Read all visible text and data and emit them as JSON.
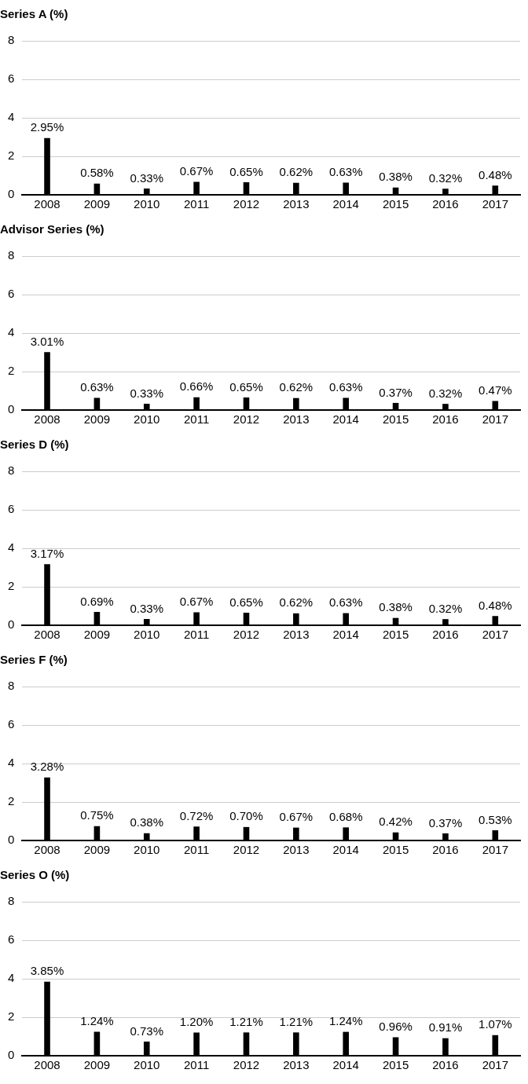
{
  "chart_data": [
    {
      "type": "bar",
      "title": "Series A (%)",
      "categories": [
        "2008",
        "2009",
        "2010",
        "2011",
        "2012",
        "2013",
        "2014",
        "2015",
        "2016",
        "2017"
      ],
      "values": [
        2.95,
        0.58,
        0.33,
        0.67,
        0.65,
        0.62,
        0.63,
        0.38,
        0.32,
        0.48
      ],
      "value_labels": [
        "2.95%",
        "0.58%",
        "0.33%",
        "0.67%",
        "0.65%",
        "0.62%",
        "0.63%",
        "0.38%",
        "0.32%",
        "0.48%"
      ],
      "color": "#000000",
      "ylim": [
        0,
        8
      ],
      "yticks": [
        0,
        2,
        4,
        6,
        8
      ],
      "grid": "y"
    },
    {
      "type": "bar",
      "title": "Advisor Series (%)",
      "categories": [
        "2008",
        "2009",
        "2010",
        "2011",
        "2012",
        "2013",
        "2014",
        "2015",
        "2016",
        "2017"
      ],
      "values": [
        3.01,
        0.63,
        0.33,
        0.66,
        0.65,
        0.62,
        0.63,
        0.37,
        0.32,
        0.47
      ],
      "value_labels": [
        "3.01%",
        "0.63%",
        "0.33%",
        "0.66%",
        "0.65%",
        "0.62%",
        "0.63%",
        "0.37%",
        "0.32%",
        "0.47%"
      ],
      "color": "#000000",
      "ylim": [
        0,
        8
      ],
      "yticks": [
        0,
        2,
        4,
        6,
        8
      ],
      "grid": "y"
    },
    {
      "type": "bar",
      "title": "Series D (%)",
      "categories": [
        "2008",
        "2009",
        "2010",
        "2011",
        "2012",
        "2013",
        "2014",
        "2015",
        "2016",
        "2017"
      ],
      "values": [
        3.17,
        0.69,
        0.33,
        0.67,
        0.65,
        0.62,
        0.63,
        0.38,
        0.32,
        0.48
      ],
      "value_labels": [
        "3.17%",
        "0.69%",
        "0.33%",
        "0.67%",
        "0.65%",
        "0.62%",
        "0.63%",
        "0.38%",
        "0.32%",
        "0.48%"
      ],
      "color": "#000000",
      "ylim": [
        0,
        8
      ],
      "yticks": [
        0,
        2,
        4,
        6,
        8
      ],
      "grid": "y"
    },
    {
      "type": "bar",
      "title": "Series F (%)",
      "categories": [
        "2008",
        "2009",
        "2010",
        "2011",
        "2012",
        "2013",
        "2014",
        "2015",
        "2016",
        "2017"
      ],
      "values": [
        3.28,
        0.75,
        0.38,
        0.72,
        0.7,
        0.67,
        0.68,
        0.42,
        0.37,
        0.53
      ],
      "value_labels": [
        "3.28%",
        "0.75%",
        "0.38%",
        "0.72%",
        "0.70%",
        "0.67%",
        "0.68%",
        "0.42%",
        "0.37%",
        "0.53%"
      ],
      "color": "#000000",
      "ylim": [
        0,
        8
      ],
      "yticks": [
        0,
        2,
        4,
        6,
        8
      ],
      "grid": "y"
    },
    {
      "type": "bar",
      "title": "Series O (%)",
      "categories": [
        "2008",
        "2009",
        "2010",
        "2011",
        "2012",
        "2013",
        "2014",
        "2015",
        "2016",
        "2017"
      ],
      "values": [
        3.85,
        1.24,
        0.73,
        1.2,
        1.21,
        1.21,
        1.24,
        0.96,
        0.91,
        1.07
      ],
      "value_labels": [
        "3.85%",
        "1.24%",
        "0.73%",
        "1.20%",
        "1.21%",
        "1.21%",
        "1.24%",
        "0.96%",
        "0.91%",
        "1.07%"
      ],
      "color": "#000000",
      "ylim": [
        0,
        8
      ],
      "yticks": [
        0,
        2,
        4,
        6,
        8
      ],
      "grid": "y"
    }
  ]
}
